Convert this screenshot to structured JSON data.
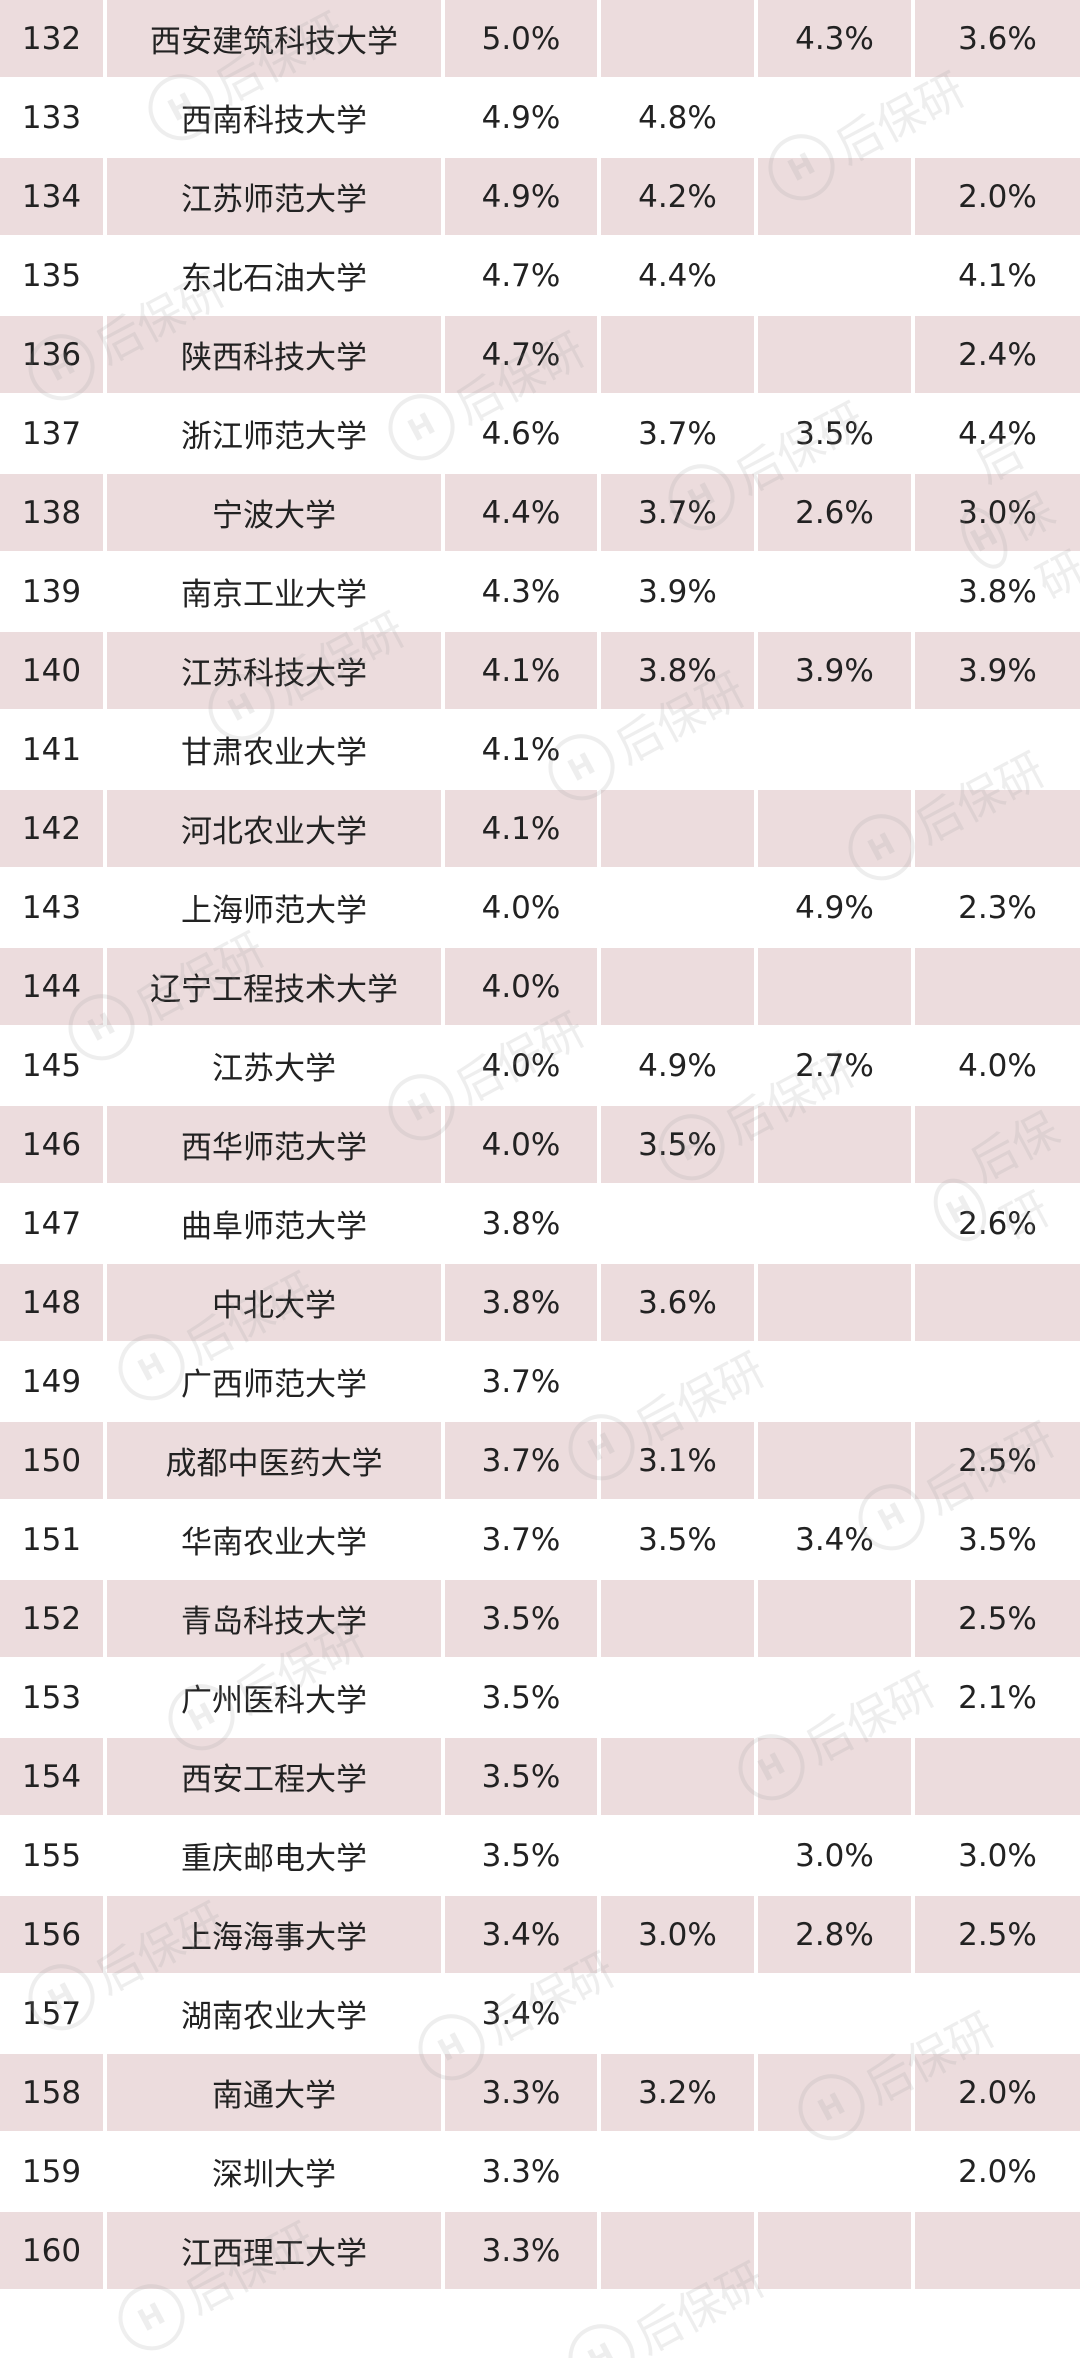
{
  "watermark": {
    "text": "后保研",
    "logo_letter": "H"
  },
  "table": {
    "rows": [
      {
        "rank": "132",
        "name": "西安建筑科技大学",
        "v1": "5.0%",
        "v2": "",
        "v3": "4.3%",
        "v4": "3.6%"
      },
      {
        "rank": "133",
        "name": "西南科技大学",
        "v1": "4.9%",
        "v2": "4.8%",
        "v3": "",
        "v4": ""
      },
      {
        "rank": "134",
        "name": "江苏师范大学",
        "v1": "4.9%",
        "v2": "4.2%",
        "v3": "",
        "v4": "2.0%"
      },
      {
        "rank": "135",
        "name": "东北石油大学",
        "v1": "4.7%",
        "v2": "4.4%",
        "v3": "",
        "v4": "4.1%"
      },
      {
        "rank": "136",
        "name": "陕西科技大学",
        "v1": "4.7%",
        "v2": "",
        "v3": "",
        "v4": "2.4%"
      },
      {
        "rank": "137",
        "name": "浙江师范大学",
        "v1": "4.6%",
        "v2": "3.7%",
        "v3": "3.5%",
        "v4": "4.4%"
      },
      {
        "rank": "138",
        "name": "宁波大学",
        "v1": "4.4%",
        "v2": "3.7%",
        "v3": "2.6%",
        "v4": "3.0%"
      },
      {
        "rank": "139",
        "name": "南京工业大学",
        "v1": "4.3%",
        "v2": "3.9%",
        "v3": "",
        "v4": "3.8%"
      },
      {
        "rank": "140",
        "name": "江苏科技大学",
        "v1": "4.1%",
        "v2": "3.8%",
        "v3": "3.9%",
        "v4": "3.9%"
      },
      {
        "rank": "141",
        "name": "甘肃农业大学",
        "v1": "4.1%",
        "v2": "",
        "v3": "",
        "v4": ""
      },
      {
        "rank": "142",
        "name": "河北农业大学",
        "v1": "4.1%",
        "v2": "",
        "v3": "",
        "v4": ""
      },
      {
        "rank": "143",
        "name": "上海师范大学",
        "v1": "4.0%",
        "v2": "",
        "v3": "4.9%",
        "v4": "2.3%"
      },
      {
        "rank": "144",
        "name": "辽宁工程技术大学",
        "v1": "4.0%",
        "v2": "",
        "v3": "",
        "v4": ""
      },
      {
        "rank": "145",
        "name": "江苏大学",
        "v1": "4.0%",
        "v2": "4.9%",
        "v3": "2.7%",
        "v4": "4.0%"
      },
      {
        "rank": "146",
        "name": "西华师范大学",
        "v1": "4.0%",
        "v2": "3.5%",
        "v3": "",
        "v4": ""
      },
      {
        "rank": "147",
        "name": "曲阜师范大学",
        "v1": "3.8%",
        "v2": "",
        "v3": "",
        "v4": "2.6%"
      },
      {
        "rank": "148",
        "name": "中北大学",
        "v1": "3.8%",
        "v2": "3.6%",
        "v3": "",
        "v4": ""
      },
      {
        "rank": "149",
        "name": "广西师范大学",
        "v1": "3.7%",
        "v2": "",
        "v3": "",
        "v4": ""
      },
      {
        "rank": "150",
        "name": "成都中医药大学",
        "v1": "3.7%",
        "v2": "3.1%",
        "v3": "",
        "v4": "2.5%"
      },
      {
        "rank": "151",
        "name": "华南农业大学",
        "v1": "3.7%",
        "v2": "3.5%",
        "v3": "3.4%",
        "v4": "3.5%"
      },
      {
        "rank": "152",
        "name": "青岛科技大学",
        "v1": "3.5%",
        "v2": "",
        "v3": "",
        "v4": "2.5%"
      },
      {
        "rank": "153",
        "name": "广州医科大学",
        "v1": "3.5%",
        "v2": "",
        "v3": "",
        "v4": "2.1%"
      },
      {
        "rank": "154",
        "name": "西安工程大学",
        "v1": "3.5%",
        "v2": "",
        "v3": "",
        "v4": ""
      },
      {
        "rank": "155",
        "name": "重庆邮电大学",
        "v1": "3.5%",
        "v2": "",
        "v3": "3.0%",
        "v4": "3.0%"
      },
      {
        "rank": "156",
        "name": "上海海事大学",
        "v1": "3.4%",
        "v2": "3.0%",
        "v3": "2.8%",
        "v4": "2.5%"
      },
      {
        "rank": "157",
        "name": "湖南农业大学",
        "v1": "3.4%",
        "v2": "",
        "v3": "",
        "v4": ""
      },
      {
        "rank": "158",
        "name": "南通大学",
        "v1": "3.3%",
        "v2": "3.2%",
        "v3": "",
        "v4": "2.0%"
      },
      {
        "rank": "159",
        "name": "深圳大学",
        "v1": "3.3%",
        "v2": "",
        "v3": "",
        "v4": "2.0%"
      },
      {
        "rank": "160",
        "name": "江西理工大学",
        "v1": "3.3%",
        "v2": "",
        "v3": "",
        "v4": ""
      }
    ]
  }
}
